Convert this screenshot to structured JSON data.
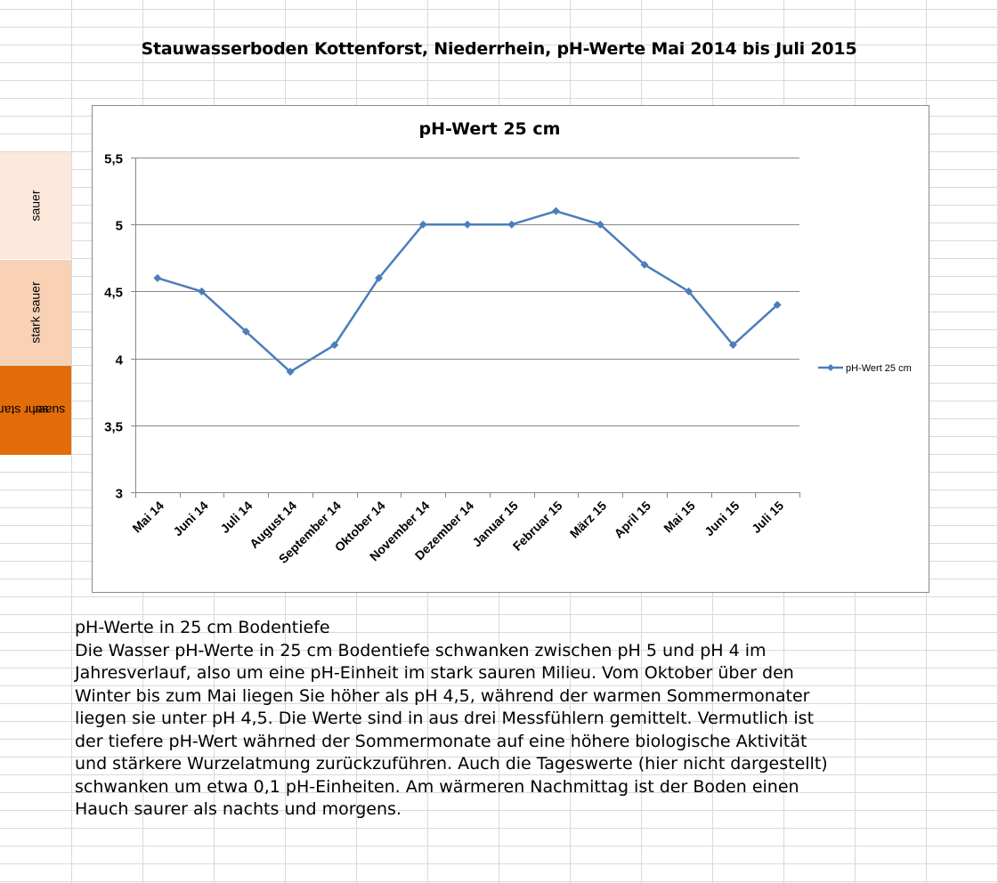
{
  "page": {
    "title": "Stauwasserboden Kottenforst, Niederrhein, pH-Werte Mai 2014 bis Juli 2015"
  },
  "bands": [
    {
      "label": "sauer",
      "color": "#fce9dc"
    },
    {
      "label": "stark sauer",
      "color": "#f9d2b5"
    },
    {
      "label": "sehr stark suaer",
      "line1": "sehr stark",
      "line2": "suaer",
      "color": "#e36c0a"
    }
  ],
  "chart_data": {
    "type": "line",
    "title": "pH-Wert 25 cm",
    "categories": [
      "Mai 14",
      "Juni 14",
      "Juli 14",
      "August 14",
      "September 14",
      "Oktober 14",
      "November 14",
      "Dezember 14",
      "Januar 15",
      "Februar 15",
      "März 15",
      "April 15",
      "Mai 15",
      "Juni 15",
      "Juli 15"
    ],
    "series": [
      {
        "name": "pH-Wert 25 cm",
        "values": [
          4.6,
          4.5,
          4.2,
          3.9,
          4.1,
          4.6,
          5.0,
          5.0,
          5.0,
          5.1,
          5.0,
          4.7,
          4.5,
          4.1,
          4.4
        ],
        "color": "#4a7ebb"
      }
    ],
    "ylim": [
      3,
      5.5
    ],
    "yticks": [
      "3",
      "3,5",
      "4",
      "4,5",
      "5",
      "5,5"
    ],
    "ytick_values": [
      3,
      3.5,
      4,
      4.5,
      5,
      5.5
    ],
    "xlabel": "",
    "ylabel": "",
    "grid": true,
    "legend_position": "right"
  },
  "description": {
    "heading": "pH-Werte in 25 cm Bodentiefe",
    "lines": [
      "Die Wasser pH-Werte in 25 cm Bodentiefe schwanken zwischen pH 5 und pH 4 im",
      "Jahresverlauf, also um eine pH-Einheit im stark sauren Milieu. Vom Oktober über den",
      "Winter bis zum Mai liegen Sie höher als pH 4,5, während der warmen Sommermonater",
      "liegen sie unter pH 4,5. Die Werte sind in aus drei Messfühlern gemittelt. Vermutlich ist",
      "der tiefere pH-Wert währned der Sommermonate auf eine höhere biologische Aktivität",
      "und stärkere Wurzelatmung zurückzuführen.  Auch die Tageswerte (hier nicht dargestellt)",
      "schwanken um etwa 0,1 pH-Einheiten. Am wärmeren Nachmittag ist der Boden einen",
      "Hauch saurer als nachts und morgens."
    ]
  }
}
